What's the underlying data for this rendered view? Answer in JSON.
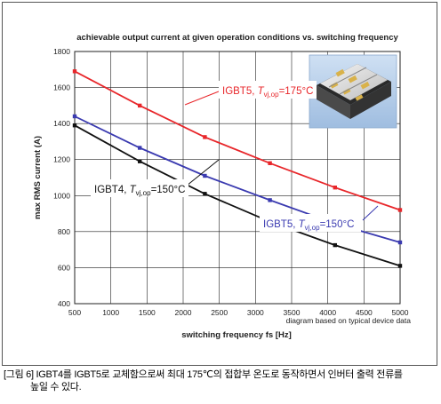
{
  "chart_data": {
    "type": "line",
    "title": "achievable output current at given operation conditions vs. switching frequency",
    "xlabel": "switching frequency fs [Hz]",
    "ylabel": "max RMS current (A)",
    "note": "diagram based on typical device data",
    "xlim": [
      500,
      5000
    ],
    "ylim": [
      400,
      1800
    ],
    "xticks": [
      500,
      1000,
      1500,
      2000,
      2500,
      3000,
      3500,
      4000,
      4500,
      5000
    ],
    "yticks": [
      400,
      600,
      800,
      1000,
      1200,
      1400,
      1600,
      1800
    ],
    "grid": true,
    "series": [
      {
        "name": "IGBT5, Tvj,op=175°C",
        "label_main": "IGBT5, ",
        "label_t": "T",
        "label_sub": "vj,op",
        "label_rest": "=175°C",
        "color": "#e8262a",
        "x": [
          500,
          1400,
          2300,
          3200,
          4100,
          5000
        ],
        "y": [
          1690,
          1500,
          1325,
          1180,
          1045,
          920
        ]
      },
      {
        "name": "IGBT5, Tvj,op=150°C",
        "label_main": "IGBT5, ",
        "label_t": "T",
        "label_sub": "vj,op",
        "label_rest": "=150°C",
        "color": "#3a3ab0",
        "x": [
          500,
          1400,
          2300,
          3200,
          4100,
          5000
        ],
        "y": [
          1440,
          1265,
          1110,
          975,
          845,
          740
        ]
      },
      {
        "name": "IGBT4, Tvj,op=150°C",
        "label_main": "IGBT4, ",
        "label_t": "T",
        "label_sub": "vj,op",
        "label_rest": "=150°C",
        "color": "#111111",
        "x": [
          500,
          1400,
          2300,
          3200,
          4100,
          5000
        ],
        "y": [
          1390,
          1190,
          1010,
          855,
          725,
          610
        ]
      }
    ]
  },
  "caption": "[그림 6] IGBT4를 IGBT5로 교체함으로써 최대 175℃의 접합부 온도로 동작하면서 인버터 출력 전류를\n높일 수 있다.",
  "photo": {
    "icon": "igbt-module-photo-icon"
  }
}
